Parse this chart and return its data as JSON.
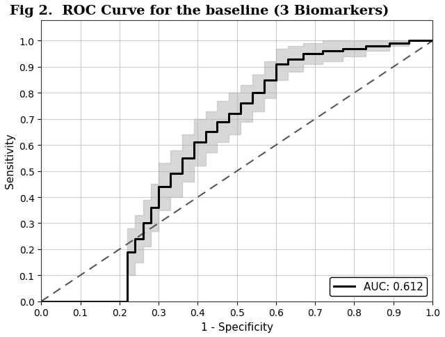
{
  "title": "Fig 2.  ROC Curve for the baseline (3 Biomarkers)",
  "xlabel": "1 - Specificity",
  "ylabel": "Sensitivity",
  "auc": 0.612,
  "legend_label": "AUC: 0.612",
  "roc_fpr": [
    0.0,
    0.22,
    0.22,
    0.24,
    0.24,
    0.26,
    0.26,
    0.28,
    0.28,
    0.3,
    0.3,
    0.33,
    0.33,
    0.36,
    0.36,
    0.39,
    0.39,
    0.42,
    0.42,
    0.45,
    0.45,
    0.48,
    0.48,
    0.51,
    0.51,
    0.54,
    0.54,
    0.57,
    0.57,
    0.6,
    0.6,
    0.63,
    0.63,
    0.67,
    0.67,
    0.72,
    0.72,
    0.77,
    0.77,
    0.83,
    0.83,
    0.89,
    0.89,
    0.94,
    0.94,
    0.97,
    0.97,
    1.0
  ],
  "roc_tpr": [
    0.0,
    0.0,
    0.19,
    0.19,
    0.24,
    0.24,
    0.3,
    0.3,
    0.36,
    0.36,
    0.44,
    0.44,
    0.49,
    0.49,
    0.55,
    0.55,
    0.61,
    0.61,
    0.65,
    0.65,
    0.69,
    0.69,
    0.72,
    0.72,
    0.76,
    0.76,
    0.8,
    0.8,
    0.85,
    0.85,
    0.91,
    0.91,
    0.93,
    0.93,
    0.95,
    0.95,
    0.96,
    0.96,
    0.97,
    0.97,
    0.98,
    0.98,
    0.99,
    0.99,
    1.0,
    1.0,
    1.0,
    1.0
  ],
  "ci_upper": [
    0.0,
    0.0,
    0.28,
    0.28,
    0.33,
    0.33,
    0.39,
    0.39,
    0.45,
    0.45,
    0.53,
    0.53,
    0.58,
    0.58,
    0.64,
    0.64,
    0.7,
    0.7,
    0.73,
    0.73,
    0.77,
    0.77,
    0.8,
    0.8,
    0.83,
    0.83,
    0.87,
    0.87,
    0.92,
    0.92,
    0.97,
    0.97,
    0.98,
    0.98,
    0.99,
    0.99,
    1.0,
    1.0,
    1.0,
    1.0,
    1.0,
    1.0,
    1.0,
    1.0,
    1.0,
    1.0,
    1.0,
    1.0
  ],
  "ci_lower": [
    0.0,
    0.0,
    0.1,
    0.1,
    0.15,
    0.15,
    0.21,
    0.21,
    0.27,
    0.27,
    0.35,
    0.35,
    0.4,
    0.4,
    0.46,
    0.46,
    0.52,
    0.52,
    0.57,
    0.57,
    0.61,
    0.61,
    0.64,
    0.64,
    0.69,
    0.69,
    0.73,
    0.73,
    0.78,
    0.78,
    0.85,
    0.85,
    0.88,
    0.88,
    0.91,
    0.91,
    0.92,
    0.92,
    0.94,
    0.94,
    0.96,
    0.96,
    0.98,
    0.98,
    1.0,
    1.0,
    1.0,
    1.0
  ],
  "line_color": "#000000",
  "ci_color": "#b0b0b0",
  "ci_alpha": 0.5,
  "diagonal_color": "#555555",
  "background_color": "#ffffff",
  "grid_color": "#cccccc",
  "title_fontsize": 14,
  "label_fontsize": 11,
  "tick_fontsize": 10,
  "legend_fontsize": 11,
  "line_width": 2.2,
  "xlim": [
    0.0,
    1.0
  ],
  "ylim": [
    0.0,
    1.08
  ],
  "xticks": [
    0.0,
    0.1,
    0.2,
    0.3,
    0.4,
    0.5,
    0.6,
    0.7,
    0.8,
    0.9,
    1.0
  ],
  "yticks": [
    0.0,
    0.1,
    0.2,
    0.3,
    0.4,
    0.5,
    0.6,
    0.7,
    0.8,
    0.9,
    1.0
  ]
}
